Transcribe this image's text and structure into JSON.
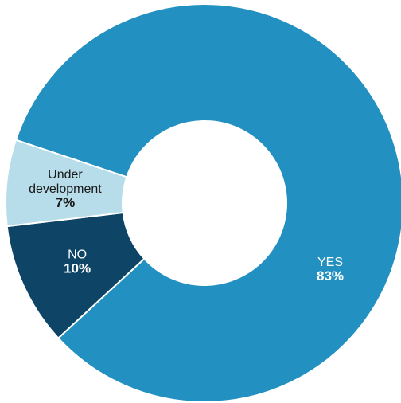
{
  "chart_data": {
    "type": "pie",
    "donut": true,
    "categories": [
      "YES",
      "NO",
      "Under development"
    ],
    "values": [
      83,
      10,
      7
    ],
    "value_labels": [
      "83%",
      "10%",
      "7%"
    ],
    "colors": [
      "#2290c0",
      "#0e4466",
      "#b6dde9"
    ],
    "label_colors": [
      "#ffffff",
      "#ffffff",
      "#1a1a1a"
    ],
    "title": "",
    "legend": "none"
  }
}
